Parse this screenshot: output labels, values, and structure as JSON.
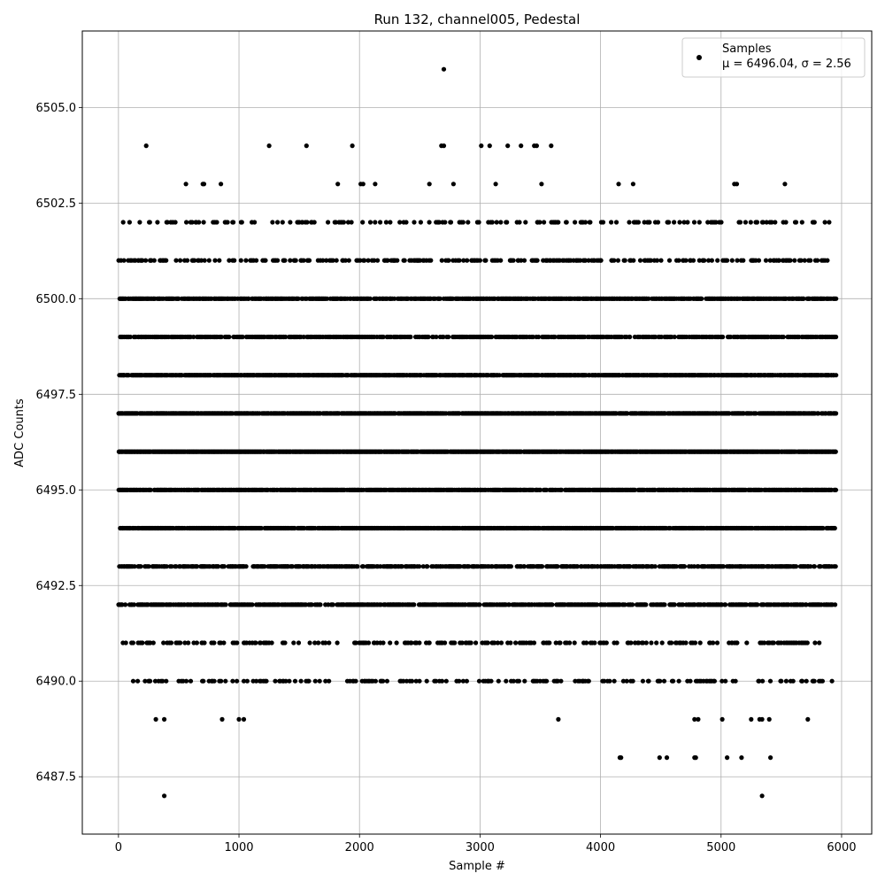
{
  "chart_data": {
    "type": "scatter",
    "title": "Run 132, channel005, Pedestal",
    "xlabel": "Sample #",
    "ylabel": "ADC Counts",
    "xlim": [
      -300,
      6250
    ],
    "ylim": [
      6486.0,
      6507.0
    ],
    "grid": true,
    "legend_position": "top-right",
    "x_ticks": [
      "0",
      "1000",
      "2000",
      "3000",
      "4000",
      "5000",
      "6000"
    ],
    "y_ticks": [
      "6487.5",
      "6490.0",
      "6492.5",
      "6495.0",
      "6497.5",
      "6500.0",
      "6502.5",
      "6505.0"
    ],
    "marker_color": "#000000",
    "series": [
      {
        "name": "Samples",
        "legend_label": "μ = 6496.04, σ = 2.56",
        "mean": 6496.04,
        "sigma": 2.56,
        "x_range": [
          0,
          5950
        ],
        "level_extents": [
          {
            "y": 6487,
            "x": [
              380,
              5340
            ]
          },
          {
            "y": 6488,
            "x": [
              4160,
              4170,
              4490,
              4550,
              4780,
              4790,
              5050,
              5170,
              5410
            ]
          },
          {
            "y": 6489,
            "x": [
              310,
              380,
              860,
              1000,
              1040,
              3650,
              4780,
              4810,
              5010,
              5250,
              5320,
              5340,
              5400,
              5720
            ]
          },
          {
            "y": 6503,
            "x": [
              560,
              700,
              710,
              850,
              1820,
              2010,
              2030,
              2130,
              2580,
              2780,
              3130,
              3510,
              4150,
              4270,
              5110,
              5130,
              5530
            ]
          },
          {
            "y": 6504,
            "x": [
              230,
              1250,
              1560,
              1940,
              2680,
              2700,
              3010,
              3080,
              3230,
              3340,
              3450,
              3470,
              3590
            ]
          },
          {
            "y": 6506,
            "x": [
              2700
            ]
          }
        ],
        "dense_levels": [
          {
            "y": 6490,
            "x_min": 100,
            "x_max": 5940,
            "density": 0.18
          },
          {
            "y": 6491,
            "x_min": 30,
            "x_max": 5880,
            "density": 0.25
          },
          {
            "y": 6492,
            "x_min": 0,
            "x_max": 5950,
            "density": 0.65
          },
          {
            "y": 6493,
            "x_min": 0,
            "x_max": 5950,
            "density": 0.6
          },
          {
            "y": 6494,
            "x_min": 0,
            "x_max": 5950,
            "density": 0.85
          },
          {
            "y": 6495,
            "x_min": 0,
            "x_max": 5950,
            "density": 0.8
          },
          {
            "y": 6496,
            "x_min": 0,
            "x_max": 5950,
            "density": 0.95
          },
          {
            "y": 6497,
            "x_min": 0,
            "x_max": 5950,
            "density": 0.85
          },
          {
            "y": 6498,
            "x_min": 0,
            "x_max": 5950,
            "density": 0.85
          },
          {
            "y": 6499,
            "x_min": 0,
            "x_max": 5950,
            "density": 0.6
          },
          {
            "y": 6500,
            "x_min": 0,
            "x_max": 5950,
            "density": 0.7
          },
          {
            "y": 6501,
            "x_min": 0,
            "x_max": 5900,
            "density": 0.3
          },
          {
            "y": 6502,
            "x_min": 0,
            "x_max": 5900,
            "density": 0.2
          }
        ]
      }
    ]
  }
}
